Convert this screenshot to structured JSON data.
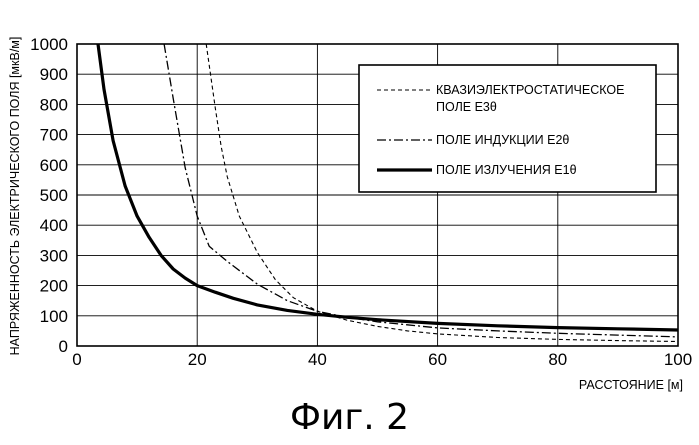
{
  "chart_data": {
    "type": "line",
    "title": "",
    "xlabel": "РАССТОЯНИЕ [м]",
    "ylabel": "НАПРЯЖЕННОСТЬ ЭЛЕКТРИЧЕСКОГО ПОЛЯ [мкВ/м]",
    "xlim": [
      0,
      100
    ],
    "ylim": [
      0,
      1000
    ],
    "xticks": [
      "0",
      "20",
      "40",
      "60",
      "80",
      "100"
    ],
    "yticks": [
      "0",
      "100",
      "200",
      "300",
      "400",
      "500",
      "600",
      "700",
      "800",
      "900",
      "1000"
    ],
    "grid": true,
    "legend_position": "top-right",
    "series": [
      {
        "name": "КВАЗИЭЛЕКТРОСТАТИЧЕСКОЕ ПОЛЕ E3θ",
        "style": "dashed",
        "x": [
          21.5,
          22,
          23,
          24,
          25,
          27,
          30,
          33,
          36,
          40,
          45,
          50,
          55,
          60,
          70,
          80,
          90,
          100
        ],
        "y": [
          1000,
          930,
          790,
          660,
          560,
          430,
          310,
          220,
          160,
          115,
          85,
          65,
          50,
          40,
          28,
          22,
          18,
          15
        ]
      },
      {
        "name": "ПОЛЕ ИНДУКЦИИ E2θ",
        "style": "dash-dot",
        "x": [
          14.5,
          16,
          18,
          20,
          22,
          25,
          30,
          35,
          40,
          45,
          50,
          60,
          70,
          80,
          90,
          100
        ],
        "y": [
          1000,
          820,
          590,
          430,
          330,
          280,
          205,
          150,
          115,
          95,
          80,
          60,
          50,
          42,
          36,
          30
        ]
      },
      {
        "name": "ПОЛЕ ИЗЛУЧЕНИЯ E1θ",
        "style": "solid",
        "x": [
          3.5,
          4.5,
          6,
          8,
          10,
          12,
          14,
          16,
          18,
          20,
          23,
          26,
          30,
          35,
          40,
          45,
          50,
          60,
          70,
          80,
          90,
          100
        ],
        "y": [
          1000,
          850,
          680,
          530,
          430,
          360,
          300,
          255,
          225,
          200,
          178,
          158,
          136,
          118,
          105,
          95,
          87,
          75,
          67,
          61,
          57,
          53
        ]
      }
    ]
  },
  "caption": "Фиг. 2"
}
